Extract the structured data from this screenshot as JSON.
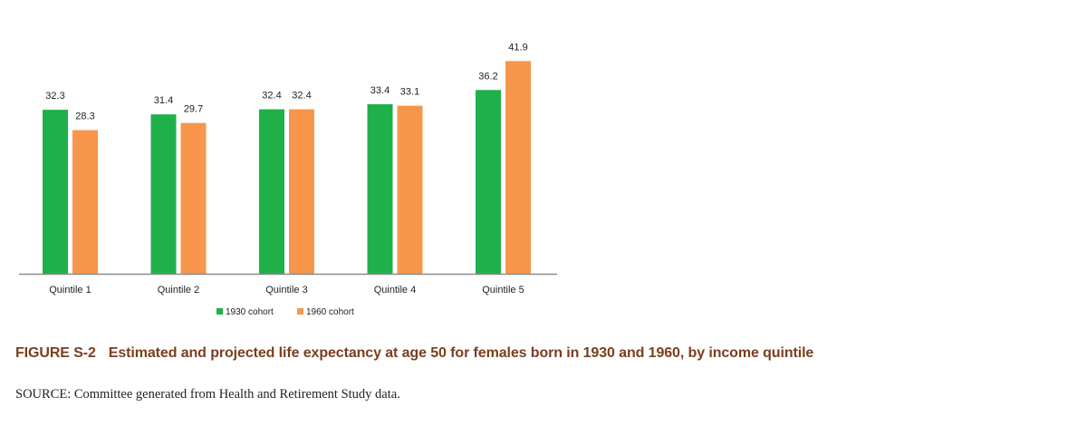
{
  "colors": {
    "series_1930": "#1fb04a",
    "series_1960": "#f7964a",
    "title": "#7a3e1f",
    "axis": "#8c8c8c"
  },
  "figure": {
    "number": "FIGURE S-2",
    "title": "Estimated and projected life expectancy at age 50 for females born in 1930 and 1960, by income quintile",
    "source": "SOURCE: Committee generated from Health and Retirement Study data."
  },
  "chart_data": {
    "type": "bar",
    "categories": [
      "Quintile 1",
      "Quintile 2",
      "Quintile 3",
      "Quintile 4",
      "Quintile 5"
    ],
    "series": [
      {
        "name": "1930 cohort",
        "values": [
          32.3,
          31.4,
          32.4,
          33.4,
          36.2
        ]
      },
      {
        "name": "1960 cohort",
        "values": [
          28.3,
          29.7,
          32.4,
          33.1,
          41.9
        ]
      }
    ],
    "data_labels": [
      [
        "32.3",
        "31.4",
        "32.4",
        "33.4",
        "36.2"
      ],
      [
        "28.3",
        "29.7",
        "32.4",
        "33.1",
        "41.9"
      ]
    ],
    "ylim": [
      0,
      42
    ],
    "grid": false,
    "legend": "bottom-center",
    "xlabel": "",
    "ylabel": ""
  }
}
